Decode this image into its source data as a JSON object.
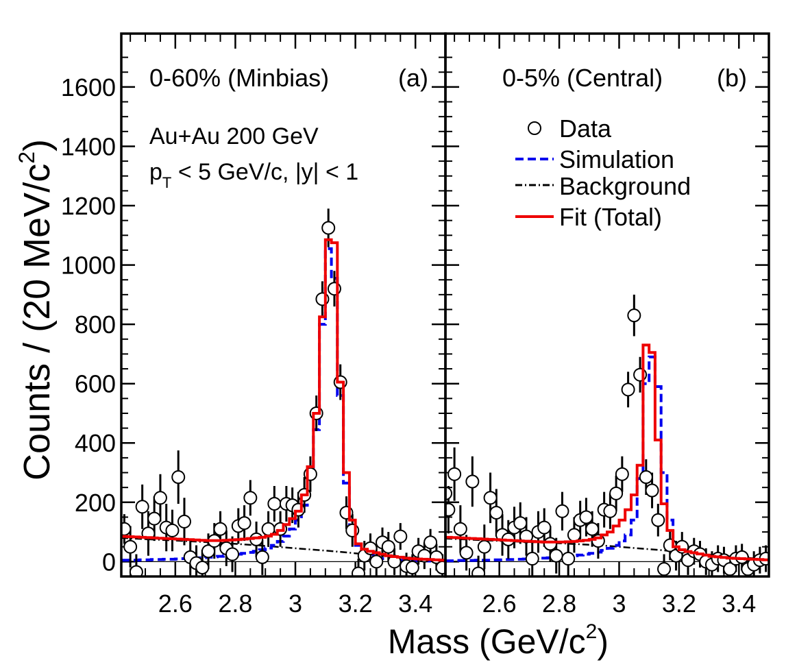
{
  "figure": {
    "ylabel_main": "Counts / (20 MeV/c",
    "ylabel_sup": "2",
    "ylabel_close": ")",
    "xlabel_main": "Mass (GeV/c",
    "xlabel_sup": "2",
    "xlabel_close": ")",
    "colors": {
      "simulation": "#0000ee",
      "fit": "#ee0000",
      "background": "#000000",
      "data": "#000000"
    }
  },
  "y_ticks": [
    0,
    200,
    400,
    600,
    800,
    1000,
    1200,
    1400,
    1600
  ],
  "x_ticks": [
    2.6,
    2.8,
    3,
    3.2,
    3.4
  ],
  "legend": {
    "placement": "panel-b top-right",
    "entries": [
      {
        "key": "data",
        "label": "Data"
      },
      {
        "key": "simulation",
        "label": "Simulation"
      },
      {
        "key": "background",
        "label": "Background"
      },
      {
        "key": "fit",
        "label": "Fit (Total)"
      }
    ]
  },
  "chart_data": [
    {
      "panel": "a",
      "type": "scatter",
      "title": "0-60% (Minbias)",
      "panel_label": "(a)",
      "info_line1": "Au+Au 200 GeV",
      "info_line2_p": "p",
      "info_line2_sub": "T",
      "info_line2_rest": " < 5 GeV/c, |y| < 1",
      "xlabel": "Mass (GeV/c2)",
      "ylabel": "Counts / (20 MeV/c2)",
      "xlim": [
        2.42,
        3.5
      ],
      "ylim": [
        -50,
        1780
      ],
      "series": [
        {
          "name": "Data",
          "x": [
            2.43,
            2.45,
            2.47,
            2.49,
            2.51,
            2.53,
            2.55,
            2.57,
            2.59,
            2.61,
            2.63,
            2.65,
            2.67,
            2.69,
            2.71,
            2.73,
            2.75,
            2.77,
            2.79,
            2.81,
            2.83,
            2.85,
            2.87,
            2.89,
            2.91,
            2.93,
            2.95,
            2.97,
            2.99,
            3.01,
            3.03,
            3.05,
            3.07,
            3.09,
            3.11,
            3.13,
            3.15,
            3.17,
            3.19,
            3.21,
            3.23,
            3.25,
            3.27,
            3.29,
            3.31,
            3.33,
            3.35,
            3.37,
            3.39,
            3.41,
            3.43,
            3.45,
            3.47,
            3.49
          ],
          "y": [
            110,
            50,
            -35,
            185,
            95,
            145,
            215,
            115,
            105,
            285,
            135,
            15,
            -5,
            -20,
            35,
            70,
            110,
            45,
            25,
            120,
            130,
            215,
            75,
            15,
            110,
            195,
            110,
            195,
            190,
            175,
            225,
            295,
            500,
            885,
            1125,
            920,
            605,
            165,
            105,
            -40,
            20,
            45,
            0,
            65,
            50,
            0,
            85,
            -15,
            -20,
            35,
            20,
            65,
            15,
            -20
          ],
          "err": [
            50,
            70,
            60,
            75,
            75,
            75,
            80,
            80,
            70,
            90,
            80,
            60,
            60,
            60,
            60,
            60,
            60,
            60,
            60,
            60,
            60,
            60,
            60,
            60,
            60,
            60,
            60,
            60,
            60,
            60,
            60,
            60,
            60,
            60,
            65,
            60,
            60,
            55,
            55,
            50,
            50,
            50,
            50,
            50,
            50,
            45,
            45,
            45,
            45,
            45,
            45,
            45,
            45,
            45
          ]
        },
        {
          "name": "Simulation",
          "style": "step",
          "x": [
            2.42,
            2.44,
            2.46,
            2.48,
            2.5,
            2.52,
            2.54,
            2.56,
            2.58,
            2.6,
            2.62,
            2.64,
            2.66,
            2.68,
            2.7,
            2.72,
            2.74,
            2.76,
            2.78,
            2.8,
            2.82,
            2.84,
            2.86,
            2.88,
            2.9,
            2.92,
            2.94,
            2.96,
            2.98,
            3.0,
            3.02,
            3.04,
            3.06,
            3.08,
            3.1,
            3.12,
            3.14,
            3.16,
            3.18,
            3.2,
            3.22,
            3.24,
            3.26,
            3.28,
            3.3,
            3.32,
            3.34,
            3.36,
            3.38,
            3.4,
            3.42,
            3.44,
            3.46,
            3.48,
            3.5
          ],
          "y": [
            5,
            5,
            5,
            6,
            6,
            7,
            7,
            8,
            8,
            9,
            10,
            11,
            12,
            13,
            15,
            16,
            18,
            20,
            22,
            25,
            28,
            31,
            35,
            40,
            46,
            55,
            68,
            86,
            110,
            140,
            190,
            285,
            445,
            800,
            1055,
            955,
            560,
            265,
            120,
            55,
            35,
            25,
            15,
            10,
            8,
            6,
            5,
            4,
            3,
            3,
            2,
            2,
            2,
            1,
            1
          ]
        },
        {
          "name": "Background",
          "style": "dashdot",
          "x": [
            2.42,
            2.5,
            2.6,
            2.7,
            2.8,
            2.9,
            2.95,
            3.0,
            3.05,
            3.1,
            3.15,
            3.2,
            3.25,
            3.3,
            3.35,
            3.4,
            3.45,
            3.5
          ],
          "y": [
            80,
            76,
            71,
            66,
            60,
            53,
            49,
            45,
            41,
            37,
            33,
            28,
            24,
            20,
            16,
            12,
            8,
            5
          ]
        },
        {
          "name": "Fit (Total)",
          "style": "step",
          "x": [
            2.42,
            2.44,
            2.46,
            2.48,
            2.5,
            2.52,
            2.54,
            2.56,
            2.58,
            2.6,
            2.62,
            2.64,
            2.66,
            2.68,
            2.7,
            2.72,
            2.74,
            2.76,
            2.78,
            2.8,
            2.82,
            2.84,
            2.86,
            2.88,
            2.9,
            2.92,
            2.94,
            2.96,
            2.98,
            3.0,
            3.02,
            3.04,
            3.06,
            3.08,
            3.1,
            3.12,
            3.14,
            3.16,
            3.18,
            3.2,
            3.22,
            3.24,
            3.26,
            3.28,
            3.3,
            3.32,
            3.34,
            3.36,
            3.38,
            3.4,
            3.42,
            3.44,
            3.46,
            3.48,
            3.5
          ],
          "y": [
            85,
            84,
            83,
            82,
            81,
            80,
            79,
            78,
            77,
            76,
            75,
            74,
            73,
            72,
            71,
            71,
            71,
            72,
            73,
            74,
            76,
            78,
            80,
            82,
            86,
            92,
            105,
            125,
            145,
            170,
            225,
            320,
            500,
            825,
            1085,
            1075,
            605,
            300,
            140,
            60,
            42,
            35,
            30,
            25,
            20,
            17,
            15,
            12,
            10,
            9,
            8,
            7,
            6,
            5,
            4
          ]
        }
      ]
    },
    {
      "panel": "b",
      "type": "scatter",
      "title": "0-5% (Central)",
      "panel_label": "(b)",
      "xlabel": "Mass (GeV/c2)",
      "ylabel": "Counts / (20 MeV/c2)",
      "xlim": [
        2.42,
        3.5
      ],
      "ylim": [
        -50,
        1780
      ],
      "series": [
        {
          "name": "Data",
          "x": [
            2.42,
            2.43,
            2.45,
            2.47,
            2.49,
            2.51,
            2.53,
            2.55,
            2.57,
            2.59,
            2.61,
            2.63,
            2.65,
            2.67,
            2.69,
            2.71,
            2.73,
            2.75,
            2.77,
            2.79,
            2.81,
            2.83,
            2.85,
            2.87,
            2.89,
            2.91,
            2.93,
            2.95,
            2.97,
            2.99,
            3.01,
            3.03,
            3.05,
            3.07,
            3.09,
            3.11,
            3.13,
            3.15,
            3.17,
            3.19,
            3.21,
            3.23,
            3.25,
            3.27,
            3.29,
            3.31,
            3.33,
            3.35,
            3.37,
            3.39,
            3.41,
            3.43,
            3.45,
            3.47,
            3.49
          ],
          "y": [
            230,
            175,
            295,
            110,
            30,
            270,
            -40,
            50,
            215,
            165,
            90,
            75,
            115,
            130,
            85,
            10,
            100,
            115,
            60,
            20,
            170,
            10,
            90,
            140,
            150,
            110,
            70,
            175,
            170,
            230,
            295,
            580,
            830,
            630,
            285,
            240,
            140,
            -25,
            55,
            20,
            50,
            5,
            35,
            25,
            0,
            -10,
            10,
            5,
            -25,
            10,
            15,
            -25,
            -10,
            5,
            10
          ],
          "err": [
            70,
            80,
            90,
            80,
            60,
            85,
            60,
            75,
            85,
            80,
            70,
            65,
            70,
            70,
            65,
            60,
            70,
            65,
            60,
            60,
            65,
            60,
            60,
            65,
            65,
            60,
            60,
            60,
            60,
            60,
            60,
            60,
            70,
            60,
            60,
            60,
            55,
            50,
            50,
            50,
            50,
            50,
            45,
            45,
            45,
            45,
            45,
            45,
            45,
            45,
            45,
            45,
            45,
            45,
            45
          ]
        },
        {
          "name": "Simulation",
          "style": "step",
          "x": [
            2.42,
            2.44,
            2.46,
            2.48,
            2.5,
            2.52,
            2.54,
            2.56,
            2.58,
            2.6,
            2.62,
            2.64,
            2.66,
            2.68,
            2.7,
            2.72,
            2.74,
            2.76,
            2.78,
            2.8,
            2.82,
            2.84,
            2.86,
            2.88,
            2.9,
            2.92,
            2.94,
            2.96,
            2.98,
            3.0,
            3.02,
            3.04,
            3.06,
            3.08,
            3.1,
            3.12,
            3.14,
            3.16,
            3.18,
            3.2,
            3.22,
            3.24,
            3.26,
            3.28,
            3.3,
            3.32,
            3.34,
            3.36,
            3.38,
            3.4,
            3.42,
            3.44,
            3.46,
            3.48,
            3.5
          ],
          "y": [
            3,
            3,
            4,
            4,
            4,
            5,
            5,
            5,
            6,
            6,
            7,
            7,
            8,
            9,
            10,
            11,
            12,
            13,
            15,
            16,
            18,
            20,
            22,
            25,
            28,
            32,
            38,
            45,
            55,
            70,
            90,
            140,
            280,
            600,
            690,
            590,
            300,
            140,
            60,
            30,
            20,
            15,
            12,
            10,
            8,
            6,
            5,
            4,
            3,
            3,
            2,
            2,
            2,
            1,
            1
          ]
        },
        {
          "name": "Background",
          "style": "dashdot",
          "x": [
            2.42,
            2.5,
            2.6,
            2.7,
            2.8,
            2.9,
            2.95,
            3.0,
            3.05,
            3.1,
            3.15,
            3.2,
            3.25,
            3.3,
            3.35,
            3.4,
            3.45,
            3.5
          ],
          "y": [
            78,
            74,
            70,
            66,
            62,
            57,
            54,
            50,
            46,
            42,
            38,
            33,
            28,
            23,
            19,
            15,
            11,
            8
          ]
        },
        {
          "name": "Fit (Total)",
          "style": "step",
          "x": [
            2.42,
            2.44,
            2.46,
            2.48,
            2.5,
            2.52,
            2.54,
            2.56,
            2.58,
            2.6,
            2.62,
            2.64,
            2.66,
            2.68,
            2.7,
            2.72,
            2.74,
            2.76,
            2.78,
            2.8,
            2.82,
            2.84,
            2.86,
            2.88,
            2.9,
            2.92,
            2.94,
            2.96,
            2.98,
            3.0,
            3.02,
            3.04,
            3.06,
            3.08,
            3.1,
            3.12,
            3.14,
            3.16,
            3.18,
            3.2,
            3.22,
            3.24,
            3.26,
            3.28,
            3.3,
            3.32,
            3.34,
            3.36,
            3.38,
            3.4,
            3.42,
            3.44,
            3.46,
            3.48,
            3.5
          ],
          "y": [
            82,
            81,
            80,
            79,
            78,
            77,
            76,
            75,
            74,
            73,
            72,
            71,
            70,
            69,
            68,
            67,
            66,
            66,
            66,
            66,
            67,
            68,
            70,
            72,
            75,
            80,
            90,
            100,
            120,
            140,
            175,
            225,
            325,
            730,
            705,
            410,
            195,
            105,
            50,
            40,
            34,
            30,
            26,
            22,
            18,
            16,
            14,
            12,
            11,
            10,
            9,
            8,
            7,
            6,
            5
          ]
        }
      ]
    }
  ]
}
